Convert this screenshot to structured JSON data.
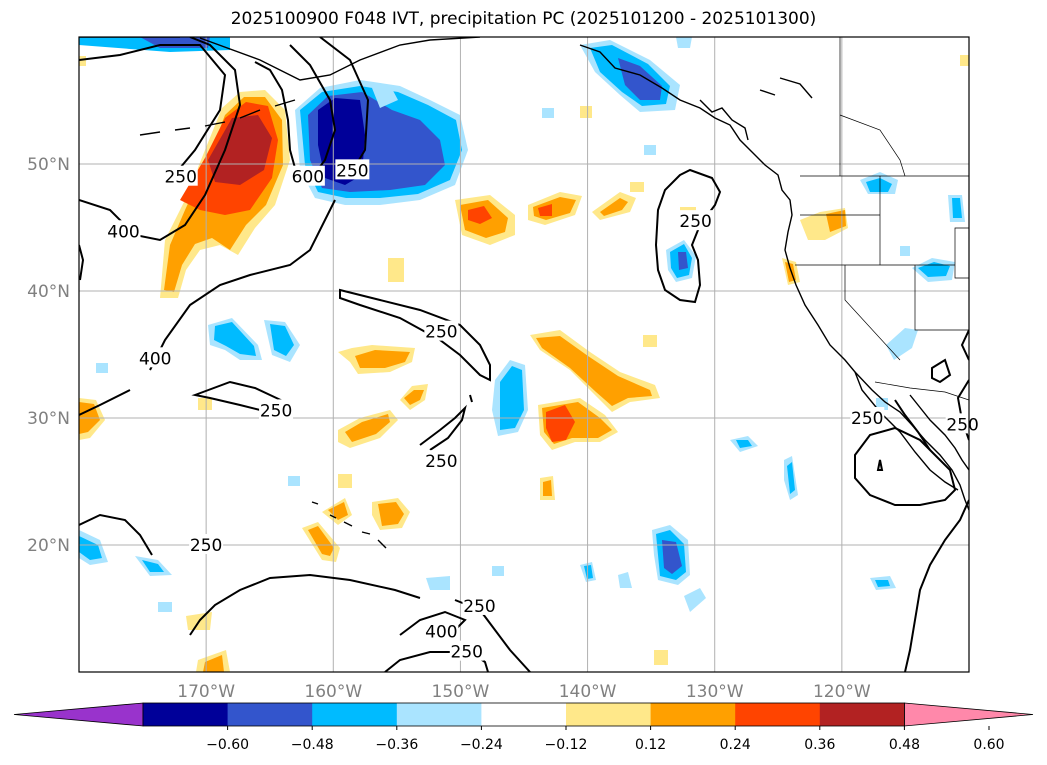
{
  "title": "2025100900 F048 IVT, precipitation PC (2025101200 - 2025101300)",
  "axes": {
    "lat_ticks": [
      {
        "lat": 50,
        "label": "50°N"
      },
      {
        "lat": 40,
        "label": "40°N"
      },
      {
        "lat": 30,
        "label": "30°N"
      },
      {
        "lat": 20,
        "label": "20°N"
      }
    ],
    "lon_ticks": [
      {
        "lon": -170,
        "label": "170°W"
      },
      {
        "lon": -160,
        "label": "160°W"
      },
      {
        "lon": -150,
        "label": "150°W"
      },
      {
        "lon": -140,
        "label": "140°W"
      },
      {
        "lon": -130,
        "label": "130°W"
      },
      {
        "lon": -120,
        "label": "120°W"
      }
    ],
    "lon_range": [
      -180,
      -110
    ],
    "lat_range": [
      10,
      60
    ],
    "tick_color": "#808080"
  },
  "contour_labels": [
    {
      "text": "250",
      "lon": -172,
      "lat": 49
    },
    {
      "text": "400",
      "lon": -176.5,
      "lat": 44.7
    },
    {
      "text": "600",
      "lon": -162,
      "lat": 49
    },
    {
      "text": "250",
      "lon": -158.5,
      "lat": 49.5
    },
    {
      "text": "250",
      "lon": -131.5,
      "lat": 45.5
    },
    {
      "text": "250",
      "lon": -151.5,
      "lat": 36.8
    },
    {
      "text": "400",
      "lon": -174,
      "lat": 34.7
    },
    {
      "text": "250",
      "lon": -164.5,
      "lat": 30.6
    },
    {
      "text": "250",
      "lon": -151.5,
      "lat": 26.6
    },
    {
      "text": "250",
      "lon": -170,
      "lat": 20
    },
    {
      "text": "250",
      "lon": -148.5,
      "lat": 15.2
    },
    {
      "text": "400",
      "lon": -151.5,
      "lat": 13.2
    },
    {
      "text": "250",
      "lon": -149.5,
      "lat": 11.6
    },
    {
      "text": "250",
      "lon": -118,
      "lat": 30
    },
    {
      "text": "250",
      "lon": -110.5,
      "lat": 29.5
    }
  ],
  "colorbar": {
    "colors": [
      "#9933cc",
      "#000099",
      "#3355cc",
      "#00bbff",
      "#aae4ff",
      "#ffffff",
      "#ffe88a",
      "#ffa000",
      "#ff4400",
      "#b22222",
      "#ff88aa"
    ],
    "labels": [
      "−0.60",
      "−0.48",
      "−0.36",
      "−0.24",
      "−0.12",
      "0.12",
      "0.24",
      "0.36",
      "0.48",
      "0.60"
    ]
  },
  "chart_data": {
    "type": "map",
    "title": "2025100900 F048 IVT, precipitation PC (2025101200 - 2025101300)",
    "extent": {
      "lon": [
        -180,
        -110
      ],
      "lat": [
        10,
        60
      ]
    },
    "ivt_contour_levels": [
      250,
      400,
      600
    ],
    "precip_pc_levels": [
      -0.6,
      -0.48,
      -0.36,
      -0.24,
      -0.12,
      0.12,
      0.24,
      0.36,
      0.48,
      0.6
    ],
    "features": [
      {
        "name": "positive precipitation PC anomaly",
        "lon": -167,
        "lat": 49,
        "max": 0.48
      },
      {
        "name": "negative precipitation PC anomaly",
        "lon": -159.5,
        "lat": 51,
        "min": -0.6
      },
      {
        "name": "positive precipitation PC anomaly",
        "lon": -138,
        "lat": 34,
        "max": 0.36
      },
      {
        "name": "positive precipitation PC anomaly",
        "lon": -141.5,
        "lat": 29.5,
        "max": 0.48
      },
      {
        "name": "negative precipitation PC anomaly",
        "lon": -136.5,
        "lat": 55.5,
        "min": -0.48
      },
      {
        "name": "negative precipitation PC anomaly",
        "lon": -134,
        "lat": 19,
        "min": -0.48
      }
    ]
  }
}
